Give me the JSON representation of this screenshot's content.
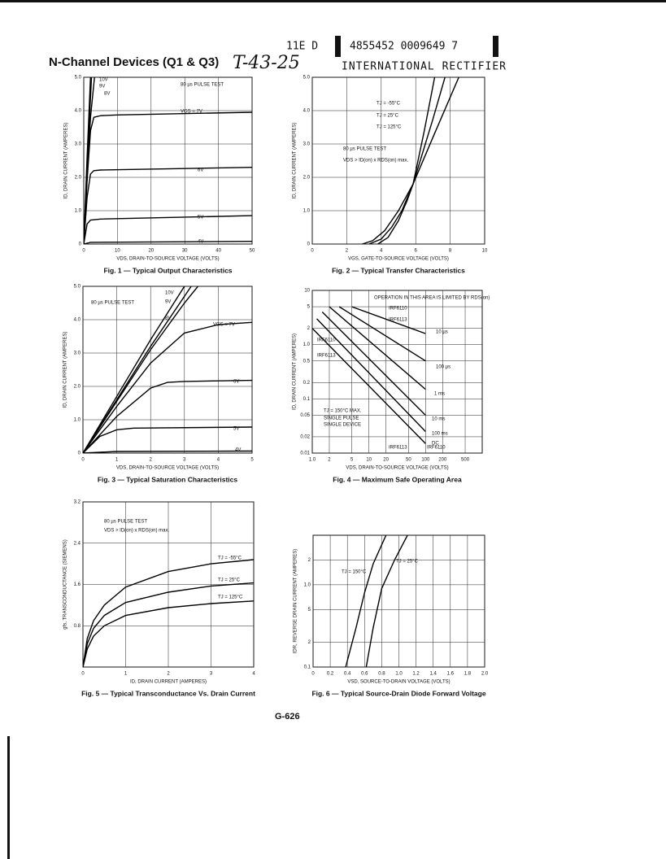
{
  "header": {
    "code": "11E D",
    "number": "4855452 0009649 7",
    "title": "N-Channel Devices (Q1 & Q3)",
    "handwritten": "T-43-25",
    "company": "INTERNATIONAL RECTIFIER"
  },
  "footer": {
    "page": "G-626"
  },
  "chart_data": [
    {
      "type": "line",
      "caption": "Fig. 1 — Typical Output Characteristics",
      "x_label": "VDS, DRAIN-TO-SOURCE VOLTAGE (VOLTS)",
      "y_label": "ID, DRAIN CURRENT (AMPERES)",
      "color": "#000000",
      "grid": true,
      "xlim": [
        0,
        50
      ],
      "xticks": [
        0,
        10,
        20,
        30,
        40,
        50
      ],
      "ylim": [
        0,
        5
      ],
      "yticks": [
        0,
        {
          "value": 1,
          "label": "1.0"
        },
        {
          "value": 2,
          "label": "2.0"
        },
        {
          "value": 3,
          "label": "3.0"
        },
        {
          "value": 4,
          "label": "4.0"
        },
        {
          "value": 5,
          "label": "5.0"
        }
      ],
      "annotations": [
        "80 µs PULSE TEST"
      ],
      "series": [
        {
          "name": "10V",
          "x": [
            0,
            1,
            2
          ],
          "values": [
            0,
            2.6,
            5.0
          ]
        },
        {
          "name": "9V",
          "x": [
            0,
            1,
            2.3
          ],
          "values": [
            0,
            2.3,
            5.0
          ]
        },
        {
          "name": "8V",
          "x": [
            0,
            1,
            2,
            3.2
          ],
          "values": [
            0,
            2.0,
            3.8,
            5.0
          ]
        },
        {
          "name": "VGS = 7V",
          "x": [
            0,
            1,
            2,
            3,
            5,
            10,
            50
          ],
          "values": [
            0,
            1.9,
            3.4,
            3.8,
            3.85,
            3.87,
            3.95
          ]
        },
        {
          "name": "6V",
          "x": [
            0,
            1,
            2,
            3,
            5,
            50
          ],
          "values": [
            0,
            1.4,
            2.1,
            2.2,
            2.22,
            2.3
          ]
        },
        {
          "name": "5V",
          "x": [
            0,
            1,
            2,
            5,
            50
          ],
          "values": [
            0,
            0.6,
            0.72,
            0.75,
            0.85
          ]
        },
        {
          "name": "4V",
          "x": [
            0,
            2,
            50
          ],
          "values": [
            0,
            0.05,
            0.08
          ]
        }
      ]
    },
    {
      "type": "line",
      "caption": "Fig. 2 — Typical Transfer Characteristics",
      "x_label": "VGS, GATE-TO-SOURCE VOLTAGE (VOLTS)",
      "y_label": "ID, DRAIN CURRENT (AMPERES)",
      "color": "#000000",
      "grid": true,
      "xlim": [
        0,
        10
      ],
      "xticks": [
        0,
        2,
        4,
        6,
        8,
        10
      ],
      "ylim": [
        0,
        5
      ],
      "yticks": [
        0,
        {
          "value": 1,
          "label": "1.0"
        },
        {
          "value": 2,
          "label": "2.0"
        },
        {
          "value": 3,
          "label": "3.0"
        },
        {
          "value": 4,
          "label": "4.0"
        },
        {
          "value": 5,
          "label": "5.0"
        }
      ],
      "annotations": [
        "80 µs PULSE TEST",
        "VDS > ID(on) x RDS(on) max."
      ],
      "series": [
        {
          "name": "TJ = -55°C",
          "x": [
            3.8,
            4.4,
            5,
            5.5,
            5.85,
            6.5,
            7.1
          ],
          "values": [
            0,
            0.2,
            0.7,
            1.3,
            1.8,
            3.4,
            5.0
          ]
        },
        {
          "name": "TJ = 25°C",
          "x": [
            3.3,
            4,
            4.6,
            5.2,
            5.85,
            7,
            7.7
          ],
          "values": [
            0,
            0.15,
            0.5,
            1.0,
            1.8,
            3.75,
            5.0
          ]
        },
        {
          "name": "TJ = 125°C",
          "x": [
            2.9,
            3.5,
            4.2,
            5,
            5.85,
            7,
            8.5
          ],
          "values": [
            0,
            0.1,
            0.4,
            1.0,
            1.8,
            3.2,
            5.0
          ]
        }
      ]
    },
    {
      "type": "line",
      "caption": "Fig. 3 — Typical Saturation Characteristics",
      "x_label": "VDS, DRAIN-TO-SOURCE VOLTAGE (VOLTS)",
      "y_label": "ID, DRAIN CURRENT (AMPERES)",
      "color": "#000000",
      "grid": true,
      "xlim": [
        0,
        5
      ],
      "xticks": [
        0,
        1,
        2,
        3,
        4,
        5
      ],
      "ylim": [
        0,
        5
      ],
      "yticks": [
        0,
        {
          "value": 1,
          "label": "1.0"
        },
        {
          "value": 2,
          "label": "2.0"
        },
        {
          "value": 3,
          "label": "3.0"
        },
        {
          "value": 4,
          "label": "4.0"
        },
        {
          "value": 5,
          "label": "5.0"
        }
      ],
      "annotations": [
        "80 µs PULSE TEST"
      ],
      "series": [
        {
          "name": "10V",
          "x": [
            0,
            1,
            2,
            3.0
          ],
          "values": [
            0,
            1.7,
            3.4,
            5.0
          ]
        },
        {
          "name": "9V",
          "x": [
            0,
            1,
            2,
            3.2
          ],
          "values": [
            0,
            1.6,
            3.2,
            5.0
          ]
        },
        {
          "name": "8V",
          "x": [
            0,
            1,
            2,
            3.0,
            3.4
          ],
          "values": [
            0,
            1.55,
            3.1,
            4.5,
            5.0
          ]
        },
        {
          "name": "VGS = 7V",
          "x": [
            0,
            1,
            2,
            3,
            4,
            5
          ],
          "values": [
            0,
            1.4,
            2.7,
            3.6,
            3.85,
            3.92
          ]
        },
        {
          "name": "6V",
          "x": [
            0,
            1,
            2,
            2.5,
            3,
            5
          ],
          "values": [
            0,
            1.1,
            1.95,
            2.12,
            2.15,
            2.18
          ]
        },
        {
          "name": "5V",
          "x": [
            0,
            0.5,
            1,
            1.5,
            5
          ],
          "values": [
            0,
            0.5,
            0.7,
            0.75,
            0.78
          ]
        },
        {
          "name": "4V",
          "x": [
            0,
            1,
            5
          ],
          "values": [
            0,
            0.05,
            0.06
          ]
        }
      ]
    },
    {
      "type": "line",
      "caption": "Fig. 4 — Maximum Safe Operating Area",
      "x_label": "VDS, DRAIN-TO-SOURCE VOLTAGE (VOLTS)",
      "y_label": "ID, DRAIN CURRENT (AMPERES)",
      "color": "#000000",
      "grid": true,
      "xscale": "log",
      "yscale": "log",
      "xlim": [
        1,
        1000
      ],
      "xticks": [
        {
          "value": 1,
          "label": "1.0"
        },
        2,
        5,
        10,
        20,
        50,
        100,
        200,
        500
      ],
      "ylim": [
        0.01,
        10
      ],
      "yticks": [
        0.01,
        0.02,
        0.05,
        0.1,
        0.2,
        0.5,
        {
          "value": 1,
          "label": "1.0"
        },
        2,
        5,
        10
      ],
      "annotations": [
        "OPERATION IN THIS AREA IS LIMITED BY RDS(on)",
        "IRF6110",
        "IRF6113",
        "IRF6110",
        "IRF6113",
        "TJ = 150°C MAX.",
        "SINGLE PULSE",
        "SINGLE DEVICE",
        "IRF6113",
        "IRF6110"
      ],
      "series": [
        {
          "name": "10 µs",
          "x": [
            5,
            100
          ],
          "values": [
            5,
            1.6
          ]
        },
        {
          "name": "100 µs",
          "x": [
            3,
            100
          ],
          "values": [
            5,
            0.5
          ]
        },
        {
          "name": "1 ms",
          "x": [
            2,
            100
          ],
          "values": [
            5,
            0.15
          ]
        },
        {
          "name": "10 ms",
          "x": [
            1.5,
            100
          ],
          "values": [
            4,
            0.05
          ]
        },
        {
          "name": "100 ms",
          "x": [
            1.2,
            100
          ],
          "values": [
            3,
            0.025
          ]
        },
        {
          "name": "DC",
          "x": [
            1,
            100
          ],
          "values": [
            2,
            0.015
          ]
        }
      ]
    },
    {
      "type": "line",
      "caption": "Fig. 5 — Typical Transconductance Vs. Drain Current",
      "x_label": "ID, DRAIN CURRENT (AMPERES)",
      "y_label": "gfs, TRANSCONDUCTANCE (SIEMENS)",
      "color": "#000000",
      "grid": true,
      "xlim": [
        0,
        4
      ],
      "xticks": [
        0,
        1,
        2,
        3,
        4
      ],
      "ylim": [
        0,
        3.2
      ],
      "yticks": [
        0.8,
        1.6,
        2.4,
        3.2
      ],
      "annotations": [
        "80 µs PULSE TEST",
        "VDS > ID(on) x RDS(on) max."
      ],
      "series": [
        {
          "name": "TJ = -55°C",
          "x": [
            0,
            0.1,
            0.25,
            0.5,
            1,
            2,
            3,
            4
          ],
          "values": [
            0,
            0.55,
            0.9,
            1.2,
            1.55,
            1.85,
            2.0,
            2.08
          ]
        },
        {
          "name": "TJ = 25°C",
          "x": [
            0,
            0.1,
            0.25,
            0.5,
            1,
            2,
            3,
            4
          ],
          "values": [
            0,
            0.45,
            0.75,
            1.0,
            1.25,
            1.45,
            1.57,
            1.63
          ]
        },
        {
          "name": "TJ = 125°C",
          "x": [
            0,
            0.1,
            0.25,
            0.5,
            1,
            2,
            3,
            4
          ],
          "values": [
            0,
            0.35,
            0.6,
            0.8,
            1.0,
            1.15,
            1.23,
            1.28
          ]
        }
      ]
    },
    {
      "type": "line",
      "caption": "Fig. 6 — Typical Source-Drain Diode Forward Voltage",
      "x_label": "VSD, SOURCE-TO-DRAIN VOLTAGE (VOLTS)",
      "y_label": "IDR, REVERSE DRAIN CURRENT (AMPERES)",
      "color": "#000000",
      "grid": true,
      "yscale": "log",
      "xlim": [
        0,
        2
      ],
      "xticks": [
        0,
        0.2,
        0.4,
        0.6,
        0.8,
        {
          "value": 1,
          "label": "1.0"
        },
        1.2,
        1.4,
        1.6,
        1.8,
        {
          "value": 2,
          "label": "2.0"
        }
      ],
      "ylim": [
        0.1,
        4
      ],
      "yticks": [
        0.1,
        {
          "value": 0.2,
          "label": "2"
        },
        {
          "value": 0.5,
          "label": "5"
        },
        {
          "value": 1,
          "label": "1.0"
        },
        2
      ],
      "annotations": [],
      "series": [
        {
          "name": "TJ = 150°C",
          "x": [
            0.38,
            0.5,
            0.6,
            0.7,
            0.85
          ],
          "values": [
            0.1,
            0.3,
            0.8,
            1.8,
            4
          ]
        },
        {
          "name": "TJ = 25°C",
          "x": [
            0.62,
            0.7,
            0.8,
            0.95,
            1.1
          ],
          "values": [
            0.1,
            0.3,
            0.9,
            2,
            4
          ]
        }
      ]
    }
  ]
}
